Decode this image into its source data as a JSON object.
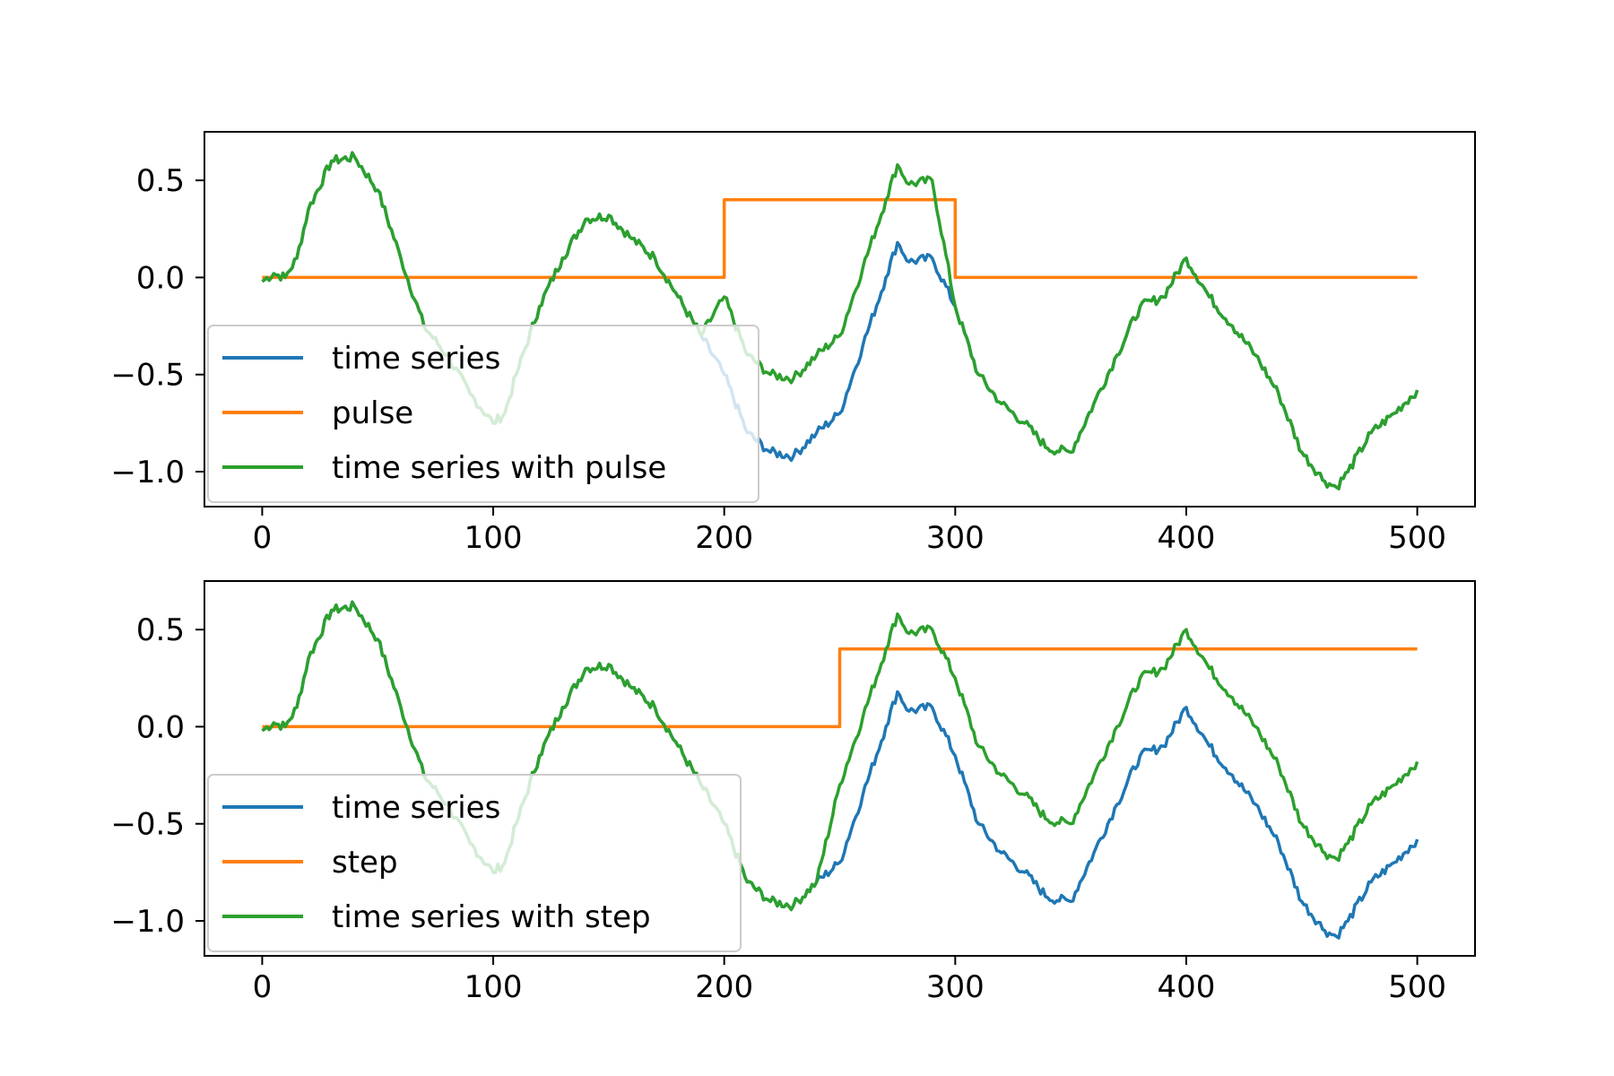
{
  "chart_data": [
    {
      "type": "line",
      "title": "",
      "xlabel": "",
      "ylabel": "",
      "xlim": [
        -25,
        525
      ],
      "ylim": [
        -1.18,
        0.75
      ],
      "xticks": [
        0,
        100,
        200,
        300,
        400,
        500
      ],
      "yticks": [
        0.5,
        0.0,
        -0.5,
        -1.0
      ],
      "xtick_labels": [
        "0",
        "100",
        "200",
        "300",
        "400",
        "500"
      ],
      "ytick_labels": [
        "0.5",
        "0.0",
        "−0.5",
        "−1.0"
      ],
      "grid": false,
      "legend_position": "lower-left",
      "legend": [
        "time series",
        "pulse",
        "time series with pulse"
      ],
      "signal": {
        "type": "pulse",
        "amplitude": 0.4,
        "start": 200,
        "end": 300
      },
      "series": [
        {
          "name": "time series",
          "color": "#1f77b4",
          "x": [
            0,
            5,
            10,
            15,
            20,
            30,
            40,
            50,
            60,
            70,
            80,
            90,
            100,
            105,
            110,
            120,
            130,
            140,
            150,
            160,
            170,
            180,
            190,
            200,
            210,
            220,
            230,
            240,
            250,
            260,
            270,
            275,
            280,
            290,
            300,
            310,
            320,
            330,
            340,
            350,
            360,
            370,
            380,
            390,
            400,
            410,
            420,
            430,
            440,
            450,
            460,
            465,
            470,
            480,
            490,
            500
          ],
          "y": [
            -0.02,
            0.02,
            0.0,
            0.1,
            0.35,
            0.6,
            0.62,
            0.45,
            0.1,
            -0.25,
            -0.4,
            -0.6,
            -0.75,
            -0.7,
            -0.5,
            -0.15,
            0.1,
            0.3,
            0.32,
            0.2,
            0.1,
            -0.1,
            -0.3,
            -0.5,
            -0.8,
            -0.9,
            -0.92,
            -0.8,
            -0.7,
            -0.35,
            0.0,
            0.18,
            0.08,
            0.1,
            -0.15,
            -0.5,
            -0.65,
            -0.75,
            -0.88,
            -0.9,
            -0.65,
            -0.4,
            -0.15,
            -0.1,
            0.1,
            -0.1,
            -0.25,
            -0.4,
            -0.6,
            -0.9,
            -1.05,
            -1.08,
            -1.0,
            -0.8,
            -0.7,
            -0.58
          ]
        },
        {
          "name": "pulse",
          "color": "#ff7f0e",
          "x": [
            0,
            200,
            200,
            300,
            300,
            500
          ],
          "y": [
            0,
            0,
            0.4,
            0.4,
            0,
            0
          ]
        },
        {
          "name": "time series with pulse",
          "color": "#2ca02c",
          "x": [
            0,
            5,
            10,
            15,
            20,
            30,
            40,
            50,
            60,
            70,
            80,
            90,
            100,
            105,
            110,
            120,
            130,
            140,
            150,
            160,
            170,
            180,
            190,
            200,
            210,
            220,
            230,
            240,
            250,
            260,
            270,
            275,
            280,
            290,
            300,
            310,
            320,
            330,
            340,
            350,
            360,
            370,
            380,
            390,
            400,
            410,
            420,
            430,
            440,
            450,
            460,
            465,
            470,
            480,
            490,
            500
          ],
          "y": [
            -0.02,
            0.02,
            0.0,
            0.1,
            0.35,
            0.6,
            0.62,
            0.45,
            0.1,
            -0.25,
            -0.4,
            -0.6,
            -0.75,
            -0.7,
            -0.5,
            -0.15,
            0.1,
            0.3,
            0.32,
            0.2,
            0.1,
            -0.1,
            -0.3,
            -0.1,
            -0.4,
            -0.5,
            -0.52,
            -0.4,
            -0.3,
            0.05,
            0.4,
            0.58,
            0.48,
            0.5,
            -0.15,
            -0.5,
            -0.65,
            -0.75,
            -0.88,
            -0.9,
            -0.65,
            -0.4,
            -0.15,
            -0.1,
            0.1,
            -0.1,
            -0.25,
            -0.4,
            -0.6,
            -0.9,
            -1.05,
            -1.08,
            -1.0,
            -0.8,
            -0.7,
            -0.58
          ]
        }
      ]
    },
    {
      "type": "line",
      "title": "",
      "xlabel": "",
      "ylabel": "",
      "xlim": [
        -25,
        525
      ],
      "ylim": [
        -1.18,
        0.75
      ],
      "xticks": [
        0,
        100,
        200,
        300,
        400,
        500
      ],
      "yticks": [
        0.5,
        0.0,
        -0.5,
        -1.0
      ],
      "xtick_labels": [
        "0",
        "100",
        "200",
        "300",
        "400",
        "500"
      ],
      "ytick_labels": [
        "0.5",
        "0.0",
        "−0.5",
        "−1.0"
      ],
      "grid": false,
      "legend_position": "lower-left",
      "legend": [
        "time series",
        "step",
        "time series with step"
      ],
      "signal": {
        "type": "step",
        "amplitude": 0.4,
        "start": 250
      },
      "series": [
        {
          "name": "time series",
          "color": "#1f77b4",
          "x": [
            0,
            5,
            10,
            15,
            20,
            30,
            40,
            50,
            60,
            70,
            80,
            90,
            100,
            105,
            110,
            120,
            130,
            140,
            150,
            160,
            170,
            180,
            190,
            200,
            210,
            220,
            230,
            240,
            250,
            260,
            270,
            275,
            280,
            290,
            300,
            310,
            320,
            330,
            340,
            350,
            360,
            370,
            380,
            390,
            400,
            410,
            420,
            430,
            440,
            450,
            460,
            465,
            470,
            480,
            490,
            500
          ],
          "y": [
            -0.02,
            0.02,
            0.0,
            0.1,
            0.35,
            0.6,
            0.62,
            0.45,
            0.1,
            -0.25,
            -0.4,
            -0.6,
            -0.75,
            -0.7,
            -0.5,
            -0.15,
            0.1,
            0.3,
            0.32,
            0.2,
            0.1,
            -0.1,
            -0.3,
            -0.5,
            -0.8,
            -0.9,
            -0.92,
            -0.8,
            -0.7,
            -0.35,
            0.0,
            0.18,
            0.08,
            0.1,
            -0.15,
            -0.5,
            -0.65,
            -0.75,
            -0.88,
            -0.9,
            -0.65,
            -0.4,
            -0.15,
            -0.1,
            0.1,
            -0.1,
            -0.25,
            -0.4,
            -0.6,
            -0.9,
            -1.05,
            -1.08,
            -1.0,
            -0.8,
            -0.7,
            -0.58
          ]
        },
        {
          "name": "step",
          "color": "#ff7f0e",
          "x": [
            0,
            250,
            250,
            500
          ],
          "y": [
            0,
            0,
            0.4,
            0.4
          ]
        },
        {
          "name": "time series with step",
          "color": "#2ca02c",
          "x": [
            0,
            5,
            10,
            15,
            20,
            30,
            40,
            50,
            60,
            70,
            80,
            90,
            100,
            105,
            110,
            120,
            130,
            140,
            150,
            160,
            170,
            180,
            190,
            200,
            210,
            220,
            230,
            240,
            250,
            260,
            270,
            275,
            280,
            290,
            300,
            310,
            320,
            330,
            340,
            350,
            360,
            370,
            380,
            390,
            400,
            410,
            420,
            430,
            440,
            450,
            460,
            465,
            470,
            480,
            490,
            500
          ],
          "y": [
            -0.02,
            0.02,
            0.0,
            0.1,
            0.35,
            0.6,
            0.62,
            0.45,
            0.1,
            -0.25,
            -0.4,
            -0.6,
            -0.75,
            -0.7,
            -0.5,
            -0.15,
            0.1,
            0.3,
            0.32,
            0.2,
            0.1,
            -0.1,
            -0.3,
            -0.5,
            -0.8,
            -0.9,
            -0.92,
            -0.8,
            -0.3,
            0.05,
            0.4,
            0.58,
            0.48,
            0.5,
            0.25,
            -0.1,
            -0.25,
            -0.35,
            -0.48,
            -0.5,
            -0.25,
            0.0,
            0.25,
            0.3,
            0.5,
            0.3,
            0.15,
            0.0,
            -0.2,
            -0.5,
            -0.65,
            -0.68,
            -0.6,
            -0.4,
            -0.3,
            -0.18
          ]
        }
      ]
    }
  ]
}
